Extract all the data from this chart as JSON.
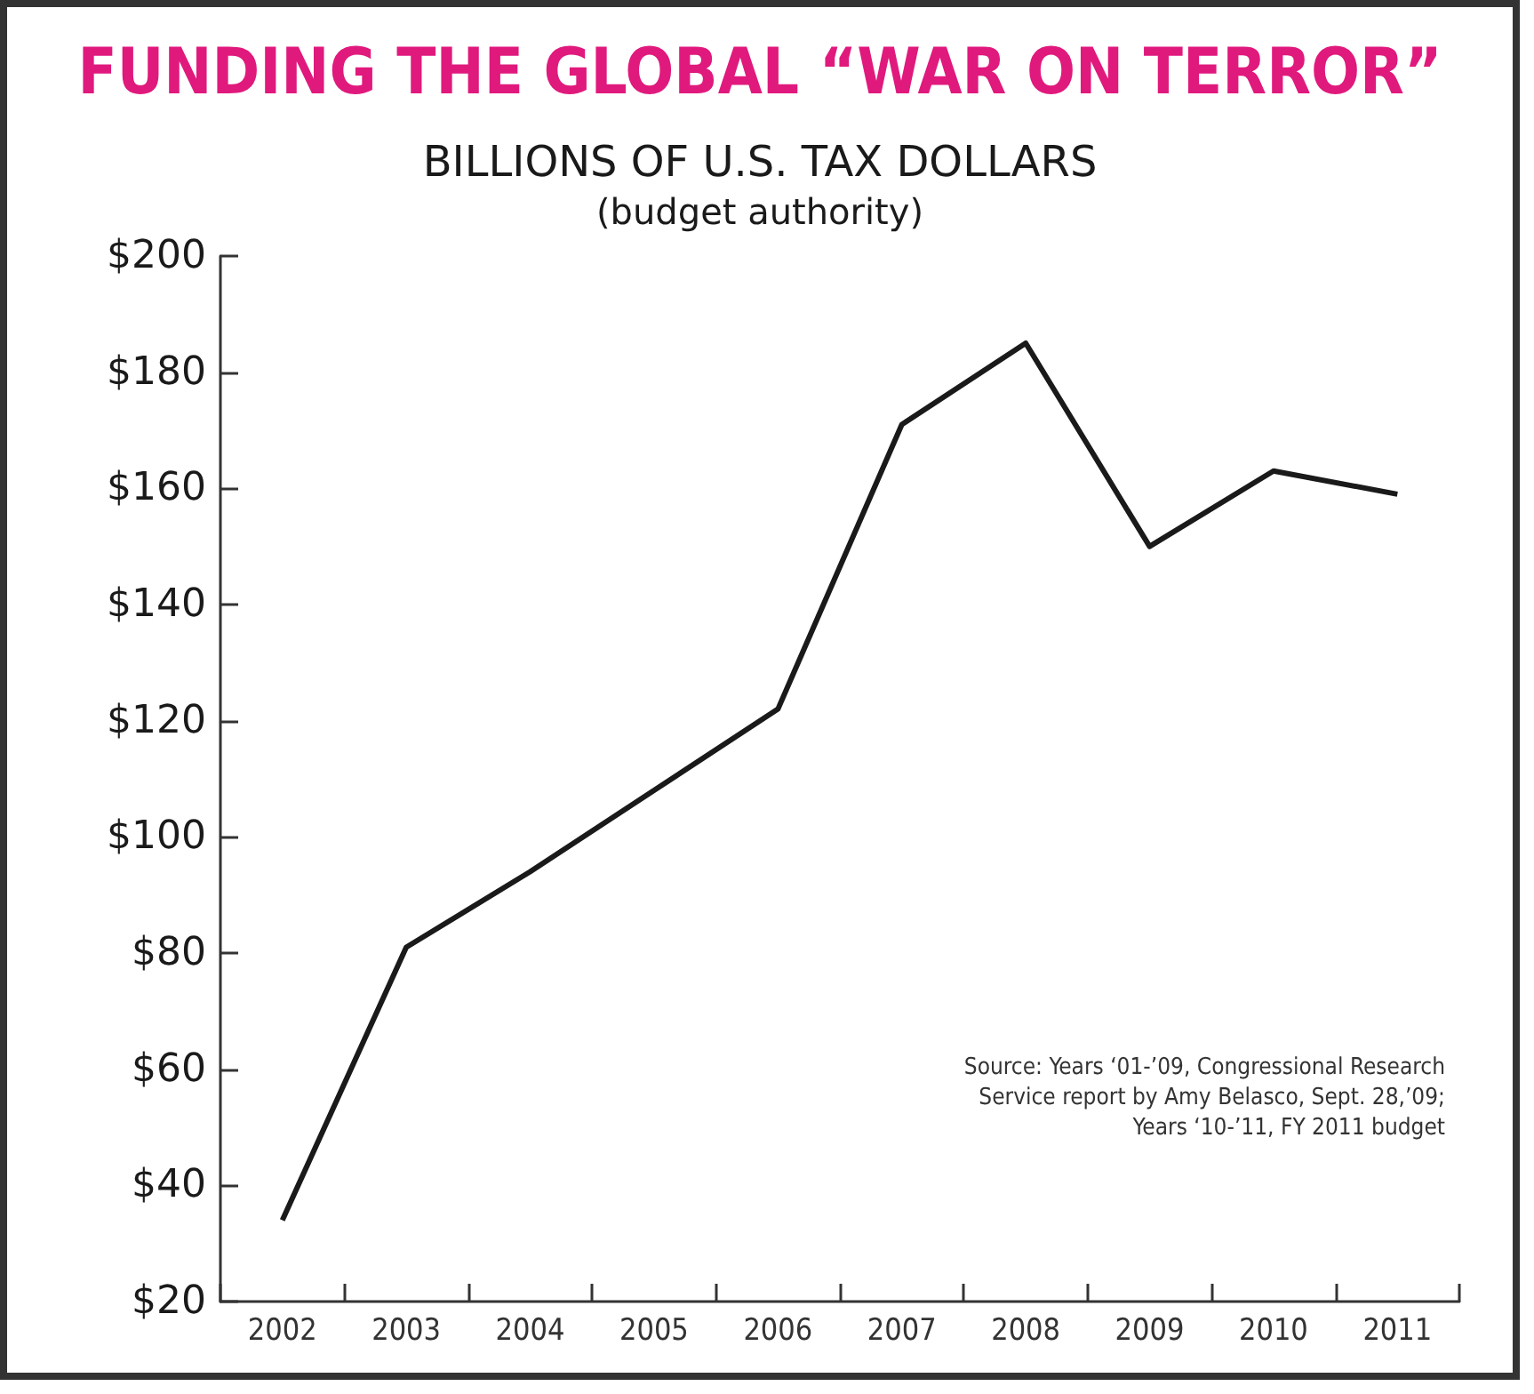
{
  "chart_data": {
    "type": "line",
    "title": "FUNDING THE GLOBAL “WAR ON TERROR”",
    "subtitle": "BILLIONS OF U.S. TAX DOLLARS\n(budget authority)",
    "categories": [
      "2002",
      "2003",
      "2004",
      "2005",
      "2006",
      "2007",
      "2008",
      "2009",
      "2010",
      "2011"
    ],
    "series": [
      {
        "color": "#1a1a1a",
        "values": [
          34,
          81,
          94,
          108,
          122,
          171,
          185,
          150,
          163,
          159
        ]
      }
    ],
    "ylim": [
      20,
      200
    ],
    "yticks": [
      {
        "value": 20,
        "label": "$20"
      },
      {
        "value": 40,
        "label": "$40"
      },
      {
        "value": 60,
        "label": "$60"
      },
      {
        "value": 80,
        "label": "$80"
      },
      {
        "value": 100,
        "label": "$100"
      },
      {
        "value": 120,
        "label": "$120"
      },
      {
        "value": 140,
        "label": "$140"
      },
      {
        "value": 160,
        "label": "$160"
      },
      {
        "value": 180,
        "label": "$180"
      },
      {
        "value": 200,
        "label": "$200"
      }
    ],
    "grid": false,
    "marker": "none",
    "line_style": "solid",
    "annotations": [
      "Source: Years ‘01-’09, Congressional Research\nService report by Amy Belasco, Sept. 28,’09;\nYears ‘10-’11, FY 2011 budget"
    ]
  }
}
